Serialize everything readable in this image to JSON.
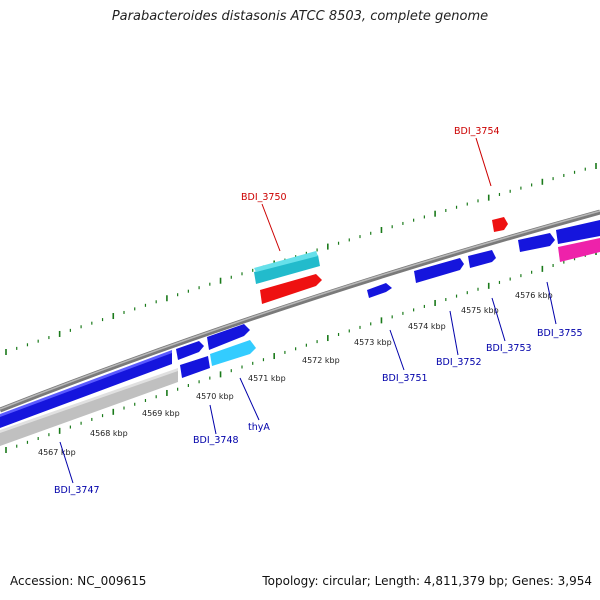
{
  "title": "Parabacteroides distasonis ATCC 8503, complete genome",
  "footer": {
    "accession": "Accession: NC_009615",
    "summary": "Topology: circular; Length: 4,811,379 bp; Genes: 3,954"
  },
  "colors": {
    "backbone": "#808080",
    "tick": "#1a7a1a",
    "forward_gene": "#1515dd",
    "reverse_gene": "#1515dd",
    "highlight_red": "#ee1111",
    "label_red": "#cc0000",
    "label_blue": "#0000aa",
    "cyan": "#22bbcc",
    "light_blue": "#33ccff",
    "magenta": "#ee22aa",
    "grey": "#bbbbbb"
  },
  "kbp_labels": [
    "4567 kbp",
    "4568 kbp",
    "4569 kbp",
    "4570 kbp",
    "4571 kbp",
    "4572 kbp",
    "4573 kbp",
    "4574 kbp",
    "4575 kbp",
    "4576 kbp"
  ],
  "gene_labels": [
    {
      "name": "BDI_3750",
      "color": "red"
    },
    {
      "name": "BDI_3754",
      "color": "red"
    },
    {
      "name": "BDI_3747",
      "color": "blue"
    },
    {
      "name": "BDI_3748",
      "color": "blue"
    },
    {
      "name": "thyA",
      "color": "blue"
    },
    {
      "name": "BDI_3751",
      "color": "blue"
    },
    {
      "name": "BDI_3752",
      "color": "blue"
    },
    {
      "name": "BDI_3753",
      "color": "blue"
    },
    {
      "name": "BDI_3755",
      "color": "blue"
    }
  ]
}
